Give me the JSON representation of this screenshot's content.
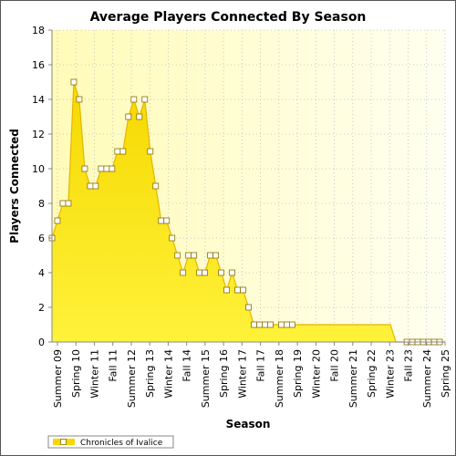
{
  "chart_data": {
    "type": "area",
    "title": "Average Players Connected By Season",
    "xlabel": "Season",
    "ylabel": "Players Connected",
    "ylim": [
      0,
      18
    ],
    "yticks": [
      0,
      2,
      4,
      6,
      8,
      10,
      12,
      14,
      16,
      18
    ],
    "grid": true,
    "legend_position": "bottom-left",
    "colors": {
      "fill": "#f5d800",
      "fill_light": "#fff23a",
      "line": "#e8b400",
      "marker_fill": "#ffffff",
      "marker_stroke": "#8a6e00",
      "plot_bg_left": "#fffbb8",
      "plot_bg_right": "#fffff0",
      "grid": "#bdbdbd"
    },
    "x_ticks": [
      "Summer 09",
      "Spring 10",
      "Winter 11",
      "Fall 11",
      "Summer 12",
      "Spring 13",
      "Winter 14",
      "Fall 14",
      "Summer 15",
      "Spring 16",
      "Winter 17",
      "Fall 17",
      "Summer 18",
      "Spring 19",
      "Winter 20",
      "Fall 20",
      "Summer 21",
      "Spring 22",
      "Winter 23",
      "Fall 23",
      "Summer 24",
      "Spring 25"
    ],
    "series": [
      {
        "name": "Chronicles of Ivalice",
        "values": [
          6,
          7,
          8,
          8,
          15,
          14,
          10,
          9,
          9,
          10,
          10,
          10,
          11,
          11,
          13,
          14,
          13,
          14,
          11,
          9,
          7,
          7,
          6,
          5,
          4,
          5,
          5,
          4,
          4,
          5,
          5,
          4,
          3,
          4,
          3,
          3,
          2,
          1,
          1,
          1,
          1,
          1,
          1,
          1,
          1,
          1,
          1,
          1,
          1,
          1,
          1,
          1,
          1,
          1,
          1,
          1,
          1,
          1,
          1,
          1,
          1,
          1,
          1,
          0,
          0,
          0,
          0,
          0,
          0,
          0,
          0,
          0,
          0
        ],
        "marker_indices": [
          0,
          1,
          2,
          3,
          4,
          5,
          6,
          7,
          8,
          9,
          10,
          11,
          12,
          13,
          14,
          15,
          16,
          17,
          18,
          19,
          20,
          21,
          22,
          23,
          24,
          25,
          26,
          27,
          28,
          29,
          30,
          31,
          32,
          33,
          34,
          35,
          36,
          37,
          38,
          39,
          40,
          42,
          43,
          44,
          65,
          66,
          67,
          68,
          69,
          70,
          71
        ]
      }
    ]
  }
}
